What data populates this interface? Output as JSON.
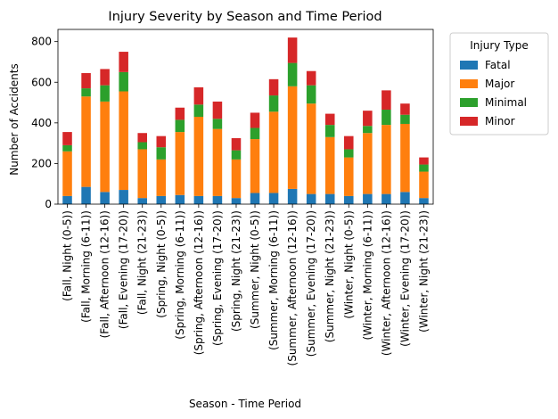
{
  "chart_data": {
    "type": "bar",
    "stacked": true,
    "title": "Injury Severity by Season and Time Period",
    "xlabel": "Season - Time Period",
    "ylabel": "Number of Accidents",
    "ylim": [
      0,
      860
    ],
    "yticks": [
      0,
      200,
      400,
      600,
      800
    ],
    "grid": false,
    "legend": {
      "title": "Injury Type",
      "placement": "outside-right"
    },
    "categories": [
      "(Fall, Night (0-5))",
      "(Fall, Morning (6-11))",
      "(Fall, Afternoon (12-16))",
      "(Fall, Evening (17-20))",
      "(Fall, Night (21-23))",
      "(Spring, Night (0-5))",
      "(Spring, Morning (6-11))",
      "(Spring, Afternoon (12-16))",
      "(Spring, Evening (17-20))",
      "(Spring, Night (21-23))",
      "(Summer, Night (0-5))",
      "(Summer, Morning (6-11))",
      "(Summer, Afternoon (12-16))",
      "(Summer, Evening (17-20))",
      "(Summer, Night (21-23))",
      "(Winter, Night (0-5))",
      "(Winter, Morning (6-11))",
      "(Winter, Afternoon (12-16))",
      "(Winter, Evening (17-20))",
      "(Winter, Night (21-23))"
    ],
    "series": [
      {
        "name": "Fatal",
        "color": "#1f77b4",
        "values": [
          40,
          85,
          60,
          70,
          30,
          40,
          45,
          40,
          40,
          30,
          55,
          55,
          75,
          50,
          50,
          40,
          50,
          50,
          60,
          30
        ]
      },
      {
        "name": "Major",
        "color": "#ff7f0e",
        "values": [
          220,
          445,
          445,
          485,
          240,
          180,
          310,
          390,
          330,
          190,
          265,
          400,
          505,
          445,
          280,
          190,
          300,
          340,
          335,
          130
        ]
      },
      {
        "name": "Minimal",
        "color": "#2ca02c",
        "values": [
          30,
          40,
          80,
          95,
          35,
          60,
          60,
          60,
          50,
          45,
          55,
          80,
          115,
          90,
          60,
          40,
          35,
          75,
          45,
          35
        ]
      },
      {
        "name": "Minor",
        "color": "#d62728",
        "values": [
          65,
          75,
          80,
          100,
          45,
          55,
          60,
          85,
          85,
          60,
          75,
          80,
          125,
          70,
          55,
          65,
          75,
          95,
          55,
          35
        ]
      }
    ]
  }
}
